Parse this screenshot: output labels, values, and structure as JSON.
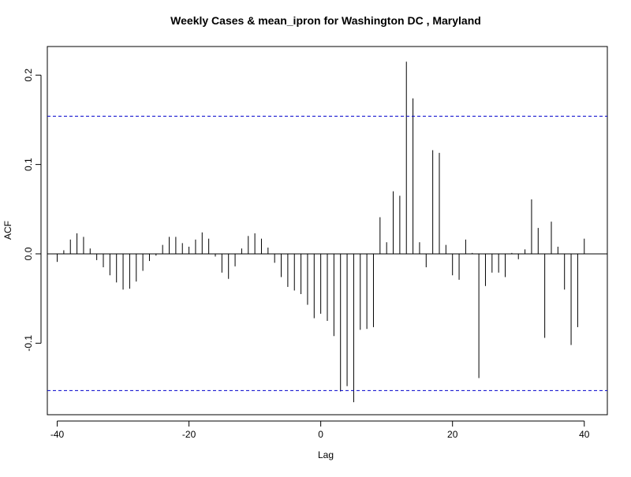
{
  "chart_data": {
    "type": "bar",
    "title": "Weekly Cases & mean_ipron for Washington DC , Maryland",
    "xlabel": "Lag",
    "ylabel": "ACF",
    "xlim": [
      -41.5,
      43.5
    ],
    "ylim": [
      -0.18,
      0.232
    ],
    "x_ticks": [
      -40,
      -20,
      0,
      20,
      40
    ],
    "x_tick_labels": [
      "-40",
      "-20",
      "0",
      "20",
      "40"
    ],
    "y_ticks": [
      -0.1,
      0.0,
      0.1,
      0.2
    ],
    "y_tick_labels": [
      "-0.1",
      "0.0",
      "0.1",
      "0.2"
    ],
    "confidence_bounds": [
      0.154,
      -0.153
    ],
    "confidence_line_color": "#0000cc",
    "bar_color": "#000000",
    "grid": false,
    "lags": [
      -40,
      -39,
      -38,
      -37,
      -36,
      -35,
      -34,
      -33,
      -32,
      -31,
      -30,
      -29,
      -28,
      -27,
      -26,
      -25,
      -24,
      -23,
      -22,
      -21,
      -20,
      -19,
      -18,
      -17,
      -16,
      -15,
      -14,
      -13,
      -12,
      -11,
      -10,
      -9,
      -8,
      -7,
      -6,
      -5,
      -4,
      -3,
      -2,
      -1,
      0,
      1,
      2,
      3,
      4,
      5,
      6,
      7,
      8,
      9,
      10,
      11,
      12,
      13,
      14,
      15,
      16,
      17,
      18,
      19,
      20,
      21,
      22,
      23,
      24,
      25,
      26,
      27,
      28,
      29,
      30,
      31,
      32,
      33,
      34,
      35,
      36,
      37,
      38,
      39,
      40
    ],
    "values": [
      -0.009,
      0.004,
      0.016,
      0.023,
      0.019,
      0.006,
      -0.007,
      -0.015,
      -0.024,
      -0.032,
      -0.04,
      -0.039,
      -0.031,
      -0.019,
      -0.008,
      -0.002,
      0.01,
      0.019,
      0.019,
      0.012,
      0.008,
      0.016,
      0.024,
      0.017,
      -0.003,
      -0.021,
      -0.028,
      -0.014,
      0.006,
      0.02,
      0.023,
      0.017,
      0.007,
      -0.01,
      -0.026,
      -0.037,
      -0.041,
      -0.045,
      -0.057,
      -0.072,
      -0.067,
      -0.075,
      -0.092,
      -0.154,
      -0.148,
      -0.166,
      -0.085,
      -0.084,
      -0.082,
      0.041,
      0.013,
      0.07,
      0.065,
      0.215,
      0.174,
      0.013,
      -0.015,
      0.116,
      0.113,
      0.01,
      -0.024,
      -0.029,
      0.016,
      0.001,
      -0.139,
      -0.036,
      -0.021,
      -0.021,
      -0.026,
      0.001,
      -0.006,
      0.005,
      0.061,
      0.029,
      -0.094,
      0.036,
      0.008,
      -0.04,
      -0.102,
      -0.082,
      0.017
    ]
  }
}
